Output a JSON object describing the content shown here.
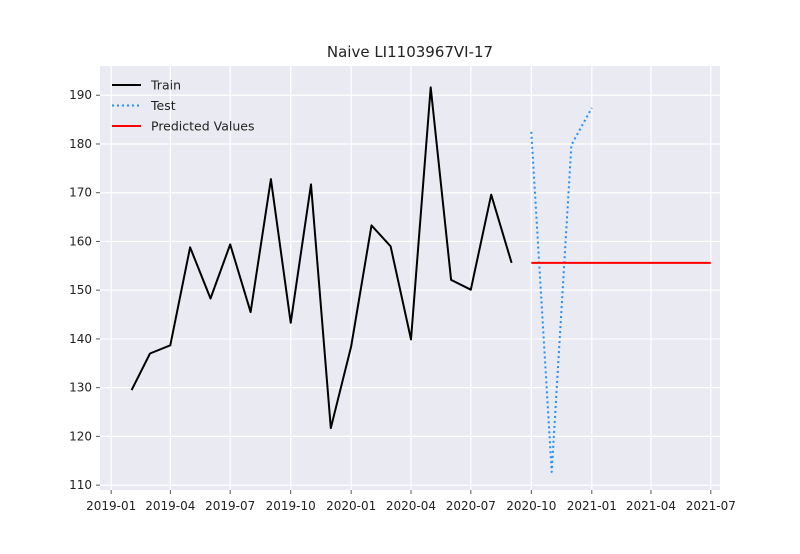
{
  "chart_data": {
    "type": "line",
    "title": "Naive LI1103967VI-17",
    "xlabel": "",
    "ylabel": "",
    "xlim": [
      "2018-12-15",
      "2021-07-15"
    ],
    "ylim": [
      109,
      196
    ],
    "x_ticks": [
      "2019-01",
      "2019-04",
      "2019-07",
      "2019-10",
      "2020-01",
      "2020-04",
      "2020-07",
      "2020-10",
      "2021-01",
      "2021-04",
      "2021-07"
    ],
    "y_ticks": [
      110,
      120,
      130,
      140,
      150,
      160,
      170,
      180,
      190
    ],
    "grid": true,
    "legend_position": "top-left",
    "series": [
      {
        "name": "Train",
        "color": "#000000",
        "style": "solid",
        "x": [
          "2019-02-01",
          "2019-03-01",
          "2019-04-01",
          "2019-05-01",
          "2019-06-01",
          "2019-07-01",
          "2019-08-01",
          "2019-09-01",
          "2019-10-01",
          "2019-11-01",
          "2019-12-01",
          "2020-01-01",
          "2020-02-01",
          "2020-03-01",
          "2020-04-01",
          "2020-05-01",
          "2020-06-01",
          "2020-07-01",
          "2020-08-01",
          "2020-09-01"
        ],
        "values": [
          129.5,
          137.0,
          138.7,
          158.8,
          148.3,
          159.4,
          145.5,
          172.8,
          143.3,
          171.7,
          121.7,
          138.5,
          163.3,
          159.0,
          139.9,
          191.6,
          152.1,
          150.1,
          169.6,
          155.6
        ]
      },
      {
        "name": "Test",
        "color": "#1e90ff",
        "style": "dotted",
        "x": [
          "2020-10-01",
          "2020-11-01",
          "2020-12-01",
          "2021-01-01"
        ],
        "values": [
          182.5,
          112.7,
          179.8,
          187.4
        ]
      },
      {
        "name": "Predicted Values",
        "color": "#ff0000",
        "style": "solid",
        "x": [
          "2020-10-01",
          "2020-11-01",
          "2020-12-01",
          "2021-01-01",
          "2021-02-01",
          "2021-03-01",
          "2021-04-01",
          "2021-05-01",
          "2021-06-01",
          "2021-07-01"
        ],
        "values": [
          155.6,
          155.6,
          155.6,
          155.6,
          155.6,
          155.6,
          155.6,
          155.6,
          155.6,
          155.6
        ]
      }
    ]
  }
}
